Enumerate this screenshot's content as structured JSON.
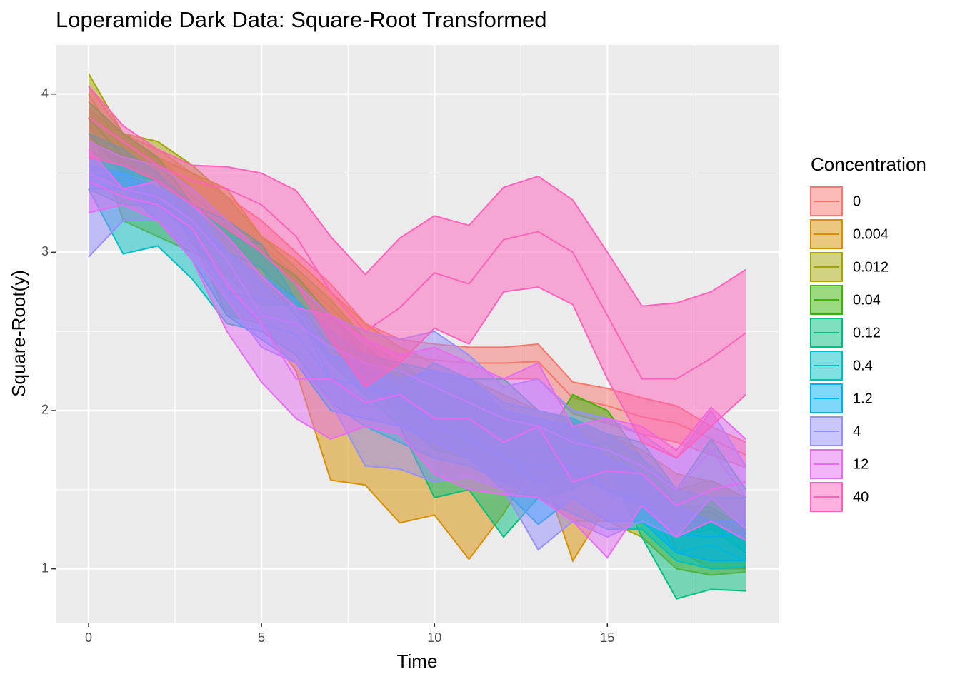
{
  "chart_data": {
    "type": "ribbon",
    "title": "Loperamide Dark Data: Square-Root Transformed",
    "x_label": "Time",
    "y_label": "Square-Root(y)",
    "legend_title": "Concentration",
    "x": [
      0,
      1,
      2,
      3,
      4,
      5,
      6,
      7,
      8,
      9,
      10,
      11,
      12,
      13,
      14,
      15,
      16,
      17,
      18,
      19
    ],
    "xlim": [
      -0.95,
      19.95
    ],
    "xticks": [
      0,
      5,
      10,
      15
    ],
    "minor_xticks": [
      2.5,
      7.5,
      12.5,
      17.5
    ],
    "ylim": [
      0.66,
      4.31
    ],
    "yticks": [
      1,
      2,
      3,
      4
    ],
    "minor_yticks": [
      1.5,
      2.5,
      3.5
    ],
    "grid": true,
    "legend_position": "right",
    "ribbon_opacity": 0.5,
    "series": [
      {
        "name": "0",
        "color": "#F8766D",
        "values": [
          3.85,
          3.62,
          3.55,
          3.35,
          3.2,
          3.05,
          2.85,
          2.65,
          2.45,
          2.35,
          2.32,
          2.3,
          2.3,
          2.31,
          2.08,
          2.03,
          1.96,
          1.92,
          1.82,
          1.72
        ],
        "upper": [
          4.05,
          3.75,
          3.65,
          3.5,
          3.35,
          3.2,
          3.0,
          2.8,
          2.55,
          2.45,
          2.42,
          2.4,
          2.4,
          2.42,
          2.18,
          2.14,
          2.08,
          2.03,
          1.9,
          1.8
        ],
        "lower": [
          3.65,
          3.5,
          3.45,
          3.2,
          3.05,
          2.9,
          2.7,
          2.5,
          2.35,
          2.25,
          2.2,
          2.2,
          2.2,
          2.2,
          1.98,
          1.92,
          1.85,
          1.8,
          1.72,
          1.64
        ]
      },
      {
        "name": "0.004",
        "color": "#D89000",
        "values": [
          3.72,
          3.6,
          3.45,
          3.3,
          3.15,
          2.85,
          2.6,
          2.3,
          2.2,
          2.0,
          1.95,
          1.8,
          1.82,
          1.8,
          1.62,
          1.57,
          1.6,
          1.32,
          1.27,
          1.26
        ],
        "upper": [
          3.9,
          3.75,
          3.6,
          3.5,
          3.4,
          3.1,
          2.95,
          2.75,
          2.55,
          2.4,
          2.3,
          2.2,
          2.1,
          2.0,
          1.95,
          1.85,
          1.75,
          1.6,
          1.55,
          1.45
        ],
        "lower": [
          3.5,
          3.4,
          3.3,
          3.1,
          2.6,
          2.55,
          2.25,
          1.56,
          1.53,
          1.29,
          1.34,
          1.06,
          1.35,
          1.7,
          1.05,
          1.4,
          1.63,
          1.12,
          1.0,
          1.0
        ]
      },
      {
        "name": "0.012",
        "color": "#A3A500",
        "values": [
          4.0,
          3.65,
          3.6,
          3.4,
          3.2,
          3.0,
          2.8,
          2.6,
          2.35,
          2.15,
          2.0,
          1.9,
          1.75,
          1.7,
          1.6,
          1.55,
          1.45,
          1.3,
          1.25,
          1.23
        ],
        "upper": [
          4.13,
          3.75,
          3.7,
          3.55,
          3.35,
          3.1,
          2.9,
          2.7,
          2.45,
          2.3,
          2.15,
          2.1,
          2.0,
          1.9,
          1.85,
          1.8,
          1.7,
          1.5,
          1.56,
          1.45
        ],
        "lower": [
          3.85,
          3.2,
          3.1,
          3.0,
          2.9,
          2.8,
          2.65,
          2.4,
          2.2,
          2.0,
          1.85,
          1.7,
          1.5,
          1.45,
          1.3,
          1.3,
          1.2,
          1.0,
          0.96,
          0.98
        ]
      },
      {
        "name": "0.04",
        "color": "#39B600",
        "values": [
          3.85,
          3.6,
          3.5,
          3.2,
          3.0,
          2.9,
          2.7,
          2.5,
          2.35,
          2.1,
          1.9,
          1.85,
          1.72,
          1.68,
          1.85,
          1.75,
          1.5,
          1.35,
          1.36,
          1.22
        ],
        "upper": [
          3.95,
          3.75,
          3.6,
          3.3,
          3.15,
          3.0,
          2.85,
          2.6,
          2.4,
          2.25,
          2.05,
          1.95,
          1.85,
          1.75,
          2.1,
          2.0,
          1.7,
          1.4,
          1.39,
          1.25
        ],
        "lower": [
          3.75,
          3.5,
          3.45,
          3.05,
          2.85,
          2.66,
          2.68,
          2.3,
          2.25,
          1.95,
          1.75,
          1.7,
          1.6,
          1.55,
          1.6,
          1.5,
          1.4,
          1.2,
          1.25,
          1.1
        ]
      },
      {
        "name": "0.12",
        "color": "#00BF7D",
        "values": [
          3.55,
          3.5,
          3.45,
          3.2,
          3.1,
          3.05,
          2.7,
          2.4,
          2.2,
          2.05,
          1.75,
          1.8,
          1.55,
          1.75,
          1.75,
          1.8,
          1.55,
          1.3,
          1.3,
          1.1
        ],
        "upper": [
          3.75,
          3.65,
          3.5,
          3.3,
          3.2,
          3.05,
          2.7,
          2.5,
          2.35,
          2.3,
          2.25,
          2.2,
          2.2,
          2.0,
          1.95,
          1.85,
          1.8,
          1.5,
          1.82,
          1.5
        ],
        "lower": [
          3.4,
          3.3,
          3.3,
          3.1,
          3.0,
          2.9,
          2.6,
          2.3,
          2.1,
          1.9,
          1.45,
          1.5,
          1.2,
          1.45,
          1.5,
          1.65,
          1.2,
          0.81,
          0.87,
          0.86
        ]
      },
      {
        "name": "0.4",
        "color": "#00BFC4",
        "values": [
          3.5,
          3.45,
          3.35,
          3.1,
          2.75,
          2.7,
          2.65,
          2.2,
          2.15,
          2.05,
          1.95,
          1.85,
          1.7,
          1.65,
          1.65,
          1.5,
          1.45,
          1.1,
          1.15,
          1.05
        ],
        "upper": [
          3.6,
          3.55,
          3.4,
          3.2,
          3.0,
          2.8,
          2.6,
          2.35,
          2.25,
          2.15,
          2.3,
          2.2,
          2.05,
          2.0,
          1.95,
          1.85,
          1.7,
          1.5,
          1.45,
          1.45
        ],
        "lower": [
          3.4,
          2.99,
          3.04,
          2.83,
          2.55,
          2.5,
          2.35,
          2.05,
          1.9,
          1.8,
          1.7,
          1.65,
          1.55,
          1.45,
          1.35,
          1.25,
          1.25,
          1.05,
          1.0,
          1.01
        ]
      },
      {
        "name": "1.2",
        "color": "#00B0F6",
        "values": [
          3.48,
          3.49,
          3.3,
          3.1,
          2.75,
          2.55,
          2.48,
          2.2,
          2.15,
          2.1,
          1.9,
          1.82,
          1.7,
          1.55,
          1.65,
          1.48,
          1.42,
          1.22,
          1.2,
          1.23
        ],
        "upper": [
          3.55,
          3.5,
          3.4,
          3.3,
          3.0,
          2.85,
          2.7,
          2.35,
          2.3,
          2.2,
          2.25,
          2.2,
          2.0,
          1.95,
          1.9,
          1.7,
          1.6,
          1.4,
          1.3,
          1.3
        ],
        "lower": [
          3.4,
          3.4,
          3.2,
          2.95,
          2.6,
          2.45,
          2.3,
          2.0,
          1.95,
          1.9,
          1.8,
          1.7,
          1.5,
          1.28,
          1.45,
          1.3,
          1.3,
          1.1,
          1.05,
          1.05
        ]
      },
      {
        "name": "4",
        "color": "#9590FF",
        "values": [
          3.5,
          3.4,
          3.35,
          3.2,
          2.95,
          2.6,
          2.55,
          2.4,
          2.3,
          2.25,
          2.15,
          2.05,
          1.95,
          1.9,
          1.8,
          1.75,
          1.65,
          1.5,
          1.75,
          1.45
        ],
        "upper": [
          3.7,
          3.6,
          3.55,
          3.4,
          3.2,
          3.0,
          2.8,
          2.6,
          2.5,
          2.45,
          2.5,
          2.35,
          2.15,
          2.2,
          2.0,
          1.95,
          1.85,
          1.7,
          2.0,
          1.65
        ],
        "lower": [
          2.97,
          3.2,
          3.2,
          3.0,
          2.7,
          2.4,
          2.3,
          2.05,
          1.65,
          1.63,
          1.55,
          1.58,
          1.5,
          1.12,
          1.3,
          1.2,
          1.3,
          1.2,
          1.45,
          1.25
        ]
      },
      {
        "name": "12",
        "color": "#E76BF3",
        "values": [
          3.45,
          3.35,
          3.3,
          3.15,
          2.8,
          2.55,
          2.2,
          2.2,
          2.05,
          2.1,
          1.95,
          1.95,
          1.8,
          1.9,
          1.55,
          1.62,
          1.6,
          1.4,
          1.5,
          1.55
        ],
        "upper": [
          3.65,
          3.4,
          3.45,
          3.3,
          3.1,
          2.85,
          2.65,
          2.6,
          2.45,
          2.35,
          2.4,
          2.3,
          2.2,
          2.3,
          1.9,
          1.95,
          1.9,
          1.75,
          2.02,
          1.82
        ],
        "lower": [
          3.25,
          3.3,
          3.2,
          2.95,
          2.5,
          2.18,
          1.95,
          1.82,
          1.9,
          1.85,
          1.6,
          1.5,
          1.47,
          1.45,
          1.3,
          1.07,
          1.4,
          1.2,
          1.3,
          1.18
        ]
      },
      {
        "name": "40",
        "color": "#FF62BC",
        "values": [
          3.85,
          3.7,
          3.55,
          3.45,
          3.4,
          3.3,
          3.1,
          2.75,
          2.5,
          2.65,
          2.87,
          2.8,
          3.08,
          3.13,
          3.0,
          2.6,
          2.2,
          2.2,
          2.33,
          2.49
        ],
        "upper": [
          4.05,
          3.8,
          3.65,
          3.55,
          3.54,
          3.5,
          3.39,
          3.1,
          2.86,
          3.09,
          3.23,
          3.17,
          3.41,
          3.48,
          3.33,
          3.0,
          2.66,
          2.68,
          2.75,
          2.89
        ],
        "lower": [
          3.6,
          3.55,
          3.45,
          3.3,
          3.15,
          3.0,
          2.8,
          2.45,
          2.15,
          2.3,
          2.52,
          2.42,
          2.75,
          2.78,
          2.67,
          2.2,
          1.8,
          1.7,
          1.9,
          2.1
        ]
      }
    ]
  }
}
